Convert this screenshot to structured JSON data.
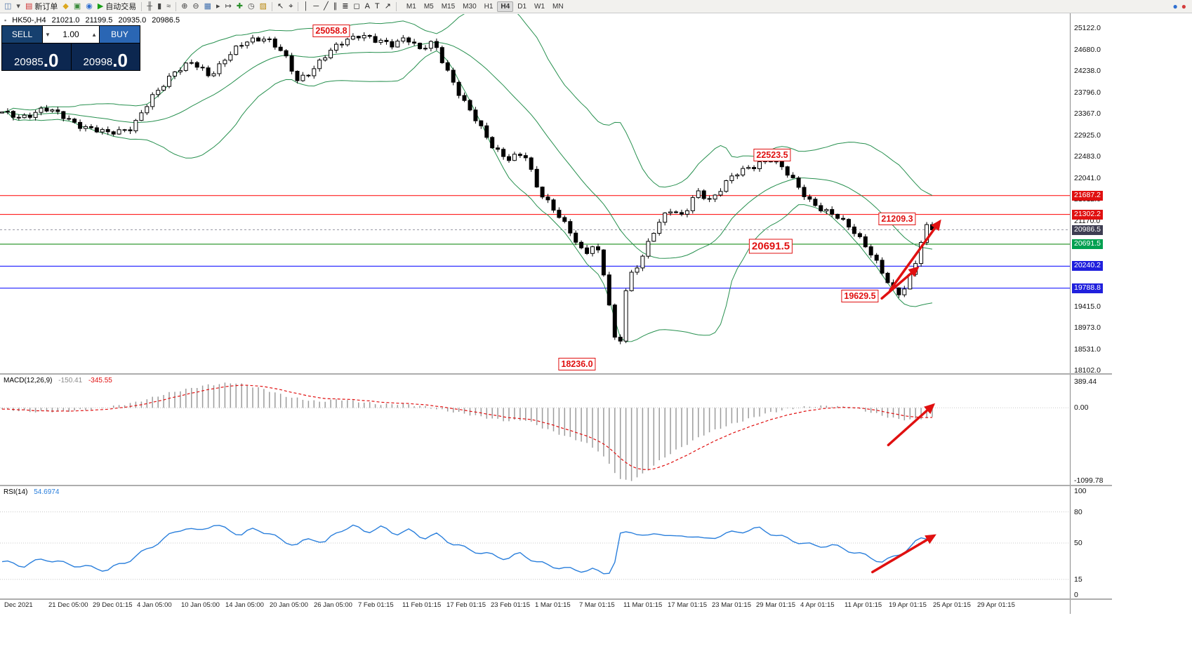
{
  "toolbar": {
    "items": [
      {
        "name": "chart-window-icon",
        "glyph": "◫",
        "color": "#4f74a8"
      },
      {
        "name": "dropdown-caret-icon",
        "glyph": "▾",
        "color": "#555555"
      },
      {
        "name": "new-order-button",
        "glyph": "▤",
        "label": "新订单",
        "color": "#cf3434"
      },
      {
        "name": "metaeditor-icon",
        "glyph": "◆",
        "color": "#dca81e"
      },
      {
        "name": "guide-icon",
        "glyph": "▣",
        "color": "#3c8c3c"
      },
      {
        "name": "market-icon",
        "glyph": "◉",
        "color": "#2f6fd0"
      },
      {
        "name": "autotrading-button",
        "glyph": "▶",
        "label": "自动交易",
        "color": "#18a018"
      },
      {
        "type": "sep"
      },
      {
        "name": "ohlc-bars-icon",
        "glyph": "╫",
        "color": "#444444"
      },
      {
        "name": "candlestick-chart-icon",
        "glyph": "▮",
        "color": "#444444"
      },
      {
        "name": "line-chart-icon",
        "glyph": "≈",
        "color": "#444444"
      },
      {
        "type": "sep"
      },
      {
        "name": "zoom-in-icon",
        "glyph": "⊕",
        "color": "#444444"
      },
      {
        "name": "zoom-out-icon",
        "glyph": "⊖",
        "color": "#444444"
      },
      {
        "name": "tile-windows-icon",
        "glyph": "▦",
        "color": "#3f6fae"
      },
      {
        "name": "auto-scroll-icon",
        "glyph": "▸",
        "color": "#444444"
      },
      {
        "name": "chart-shift-icon",
        "glyph": "↦",
        "color": "#444444"
      },
      {
        "name": "indicators-icon",
        "glyph": "✚",
        "color": "#2a8f2a"
      },
      {
        "name": "periods-icon",
        "glyph": "◷",
        "color": "#444444"
      },
      {
        "name": "templates-icon",
        "glyph": "▨",
        "color": "#b8860b"
      },
      {
        "type": "sep"
      },
      {
        "name": "cursor-icon",
        "glyph": "↖",
        "color": "#222222"
      },
      {
        "name": "crosshair-icon",
        "glyph": "⌖",
        "color": "#222222"
      },
      {
        "type": "sep"
      },
      {
        "name": "vertical-line-icon",
        "glyph": "│",
        "color": "#222222"
      },
      {
        "name": "horizontal-line-icon",
        "glyph": "─",
        "color": "#222222"
      },
      {
        "name": "trendline-icon",
        "glyph": "╱",
        "color": "#222222"
      },
      {
        "name": "channel-icon",
        "glyph": "∥",
        "color": "#222222"
      },
      {
        "name": "fibonacci-icon",
        "glyph": "≣",
        "color": "#222222"
      },
      {
        "name": "shapes-icon",
        "glyph": "◻",
        "color": "#222222"
      },
      {
        "name": "text-icon",
        "glyph": "A",
        "color": "#222222"
      },
      {
        "name": "label-icon",
        "glyph": "T",
        "color": "#222222"
      },
      {
        "name": "arrow-tool-icon",
        "glyph": "↗",
        "color": "#222222"
      },
      {
        "type": "sep"
      }
    ],
    "timeframes": {
      "options": [
        "M1",
        "M5",
        "M15",
        "M30",
        "H1",
        "H4",
        "D1",
        "W1",
        "MN"
      ],
      "active": "H4"
    },
    "right_icons": [
      {
        "name": "info-status-icon",
        "glyph": "●",
        "color": "#2f6fd0"
      },
      {
        "name": "alert-status-icon",
        "glyph": "●",
        "color": "#d43c3c"
      }
    ]
  },
  "chart_header": {
    "symbol_period": "HK50-,H4",
    "open": "21021.0",
    "high": "21199.5",
    "low": "20935.0",
    "close": "20986.5"
  },
  "trade_panel": {
    "sell_label": "SELL",
    "buy_label": "BUY",
    "volume": "1.00",
    "sell_price": "20985.0",
    "buy_price": "20998.0"
  },
  "indicators": {
    "macd": {
      "label": "MACD(12,26,9)",
      "value": "-150.41",
      "signal_value": "-345.55"
    },
    "rsi": {
      "label": "RSI(14)",
      "value": "54.6974"
    }
  },
  "axes": {
    "price_ticks": [
      "25122.0",
      "24680.0",
      "24238.0",
      "23796.0",
      "23367.0",
      "22925.0",
      "22483.0",
      "22041.0",
      "21612.0",
      "21170.0",
      "19415.0",
      "18973.0",
      "18531.0",
      "18102.0"
    ],
    "price_labels": [
      {
        "text": "21687.2",
        "price": 21687.2,
        "bg": "#e01010"
      },
      {
        "text": "21302.2",
        "price": 21302.2,
        "bg": "#e01010"
      },
      {
        "text": "20986.5",
        "price": 20986.5,
        "bg": "#3d3d52"
      },
      {
        "text": "20691.5",
        "price": 20691.5,
        "bg": "#00a050"
      },
      {
        "text": "20240.2",
        "price": 20240.2,
        "bg": "#2020dd"
      },
      {
        "text": "19788.8",
        "price": 19788.8,
        "bg": "#2020dd"
      }
    ],
    "macd_ticks": [
      "389.44",
      "0.00",
      "-1099.78"
    ],
    "rsi_ticks": [
      "100",
      "80",
      "50",
      "15",
      "0"
    ],
    "time_labels": [
      "Dec 2021",
      "21 Dec 05:00",
      "29 Dec 01:15",
      "4 Jan 05:00",
      "10 Jan 05:00",
      "14 Jan 05:00",
      "20 Jan 05:00",
      "26 Jan 05:00",
      "7 Feb 01:15",
      "11 Feb 01:15",
      "17 Feb 01:15",
      "23 Feb 01:15",
      "1 Mar 01:15",
      "7 Mar 01:15",
      "11 Mar 01:15",
      "17 Mar 01:15",
      "23 Mar 01:15",
      "29 Mar 01:15",
      "4 Apr 01:15",
      "11 Apr 01:15",
      "19 Apr 01:15",
      "25 Apr 01:15",
      "29 Apr 01:15"
    ]
  },
  "chart_data": {
    "type": "candlestick",
    "symbol": "HK50",
    "timeframe": "H4",
    "main": {
      "y_range": [
        18045,
        25410
      ],
      "bollinger_period": 20,
      "bollinger_deviation": 2,
      "current_price": 20986.5,
      "levels": [
        {
          "price": 21687.2,
          "color": "#ff0000"
        },
        {
          "price": 21302.2,
          "color": "#ff0000"
        },
        {
          "price": 20691.5,
          "color": "#008000"
        },
        {
          "price": 20240.2,
          "color": "#0000ff"
        },
        {
          "price": 19788.8,
          "color": "#0000ff"
        }
      ],
      "price_path": [
        [
          0,
          23400
        ],
        [
          0.019,
          23250
        ],
        [
          0.045,
          23500
        ],
        [
          0.075,
          23200
        ],
        [
          0.113,
          22950
        ],
        [
          0.14,
          23100
        ],
        [
          0.162,
          23700
        ],
        [
          0.185,
          24250
        ],
        [
          0.204,
          24400
        ],
        [
          0.223,
          24150
        ],
        [
          0.242,
          24550
        ],
        [
          0.264,
          24850
        ],
        [
          0.283,
          24950
        ],
        [
          0.302,
          24600
        ],
        [
          0.317,
          24050
        ],
        [
          0.332,
          24250
        ],
        [
          0.351,
          24600
        ],
        [
          0.37,
          24900
        ],
        [
          0.385,
          25000
        ],
        [
          0.4,
          24850
        ],
        [
          0.419,
          24800
        ],
        [
          0.434,
          24950
        ],
        [
          0.449,
          24650
        ],
        [
          0.464,
          24850
        ],
        [
          0.479,
          24250
        ],
        [
          0.494,
          23650
        ],
        [
          0.513,
          23150
        ],
        [
          0.528,
          22700
        ],
        [
          0.543,
          22400
        ],
        [
          0.562,
          22550
        ],
        [
          0.577,
          21800
        ],
        [
          0.596,
          21300
        ],
        [
          0.611,
          20950
        ],
        [
          0.626,
          20500
        ],
        [
          0.638,
          20700
        ],
        [
          0.649,
          19900
        ],
        [
          0.657,
          18900
        ],
        [
          0.663,
          18350
        ],
        [
          0.668,
          19600
        ],
        [
          0.675,
          20050
        ],
        [
          0.687,
          20350
        ],
        [
          0.702,
          21000
        ],
        [
          0.717,
          21450
        ],
        [
          0.732,
          21250
        ],
        [
          0.747,
          21750
        ],
        [
          0.762,
          21600
        ],
        [
          0.777,
          21950
        ],
        [
          0.792,
          22150
        ],
        [
          0.808,
          22300
        ],
        [
          0.823,
          22480
        ],
        [
          0.838,
          22250
        ],
        [
          0.853,
          21950
        ],
        [
          0.868,
          21600
        ],
        [
          0.883,
          21350
        ],
        [
          0.898,
          21250
        ],
        [
          0.913,
          21050
        ],
        [
          0.928,
          20650
        ],
        [
          0.943,
          20200
        ],
        [
          0.955,
          19850
        ],
        [
          0.962,
          19680
        ],
        [
          0.97,
          19800
        ],
        [
          0.977,
          20050
        ],
        [
          0.985,
          20450
        ],
        [
          0.992,
          21050
        ],
        [
          1,
          20986.5
        ]
      ],
      "callouts": [
        {
          "text": "25058.8",
          "x": 0.356,
          "at": 25058.8
        },
        {
          "text": "22523.5",
          "x": 0.83,
          "at": 22523.5
        },
        {
          "text": "21209.3",
          "x": 0.9645,
          "at": 21209.3
        },
        {
          "text": "20691.5",
          "x": 0.8287,
          "at": 20650,
          "large": true
        },
        {
          "text": "19629.5",
          "x": 0.9245,
          "at": 19629.5
        },
        {
          "text": "18236.0",
          "x": 0.62,
          "at": 18236
        }
      ],
      "arrows": [
        {
          "x1": 0.948,
          "p1": 19580,
          "x2": 0.986,
          "p2": 20200
        },
        {
          "x1": 0.957,
          "p1": 19750,
          "x2": 1.01,
          "p2": 21150
        }
      ]
    },
    "macd": {
      "type": "histogram+signal",
      "y_range": [
        -1160,
        500
      ],
      "path": [
        [
          0,
          -20
        ],
        [
          0.03,
          -60
        ],
        [
          0.068,
          -50
        ],
        [
          0.106,
          -10
        ],
        [
          0.143,
          80
        ],
        [
          0.181,
          230
        ],
        [
          0.219,
          340
        ],
        [
          0.249,
          380
        ],
        [
          0.279,
          290
        ],
        [
          0.309,
          160
        ],
        [
          0.34,
          90
        ],
        [
          0.362,
          130
        ],
        [
          0.385,
          90
        ],
        [
          0.408,
          50
        ],
        [
          0.43,
          60
        ],
        [
          0.453,
          20
        ],
        [
          0.475,
          -40
        ],
        [
          0.498,
          -90
        ],
        [
          0.521,
          -150
        ],
        [
          0.543,
          -200
        ],
        [
          0.562,
          -180
        ],
        [
          0.581,
          -300
        ],
        [
          0.604,
          -420
        ],
        [
          0.626,
          -520
        ],
        [
          0.641,
          -650
        ],
        [
          0.653,
          -850
        ],
        [
          0.664,
          -1080
        ],
        [
          0.675,
          -1100
        ],
        [
          0.687,
          -1020
        ],
        [
          0.702,
          -850
        ],
        [
          0.717,
          -700
        ],
        [
          0.736,
          -550
        ],
        [
          0.755,
          -400
        ],
        [
          0.777,
          -280
        ],
        [
          0.8,
          -180
        ],
        [
          0.823,
          -80
        ],
        [
          0.845,
          -20
        ],
        [
          0.868,
          20
        ],
        [
          0.891,
          30
        ],
        [
          0.913,
          0
        ],
        [
          0.932,
          -60
        ],
        [
          0.947,
          -120
        ],
        [
          0.962,
          -170
        ],
        [
          0.977,
          -180
        ],
        [
          0.989,
          -160
        ],
        [
          1,
          -150.41
        ]
      ],
      "arrow": {
        "x1": 0.955,
        "v1": -560,
        "x2": 1.003,
        "v2": 40
      }
    },
    "rsi": {
      "type": "line",
      "y_range": [
        -3.4,
        104.7
      ],
      "levels": [
        80,
        50,
        15
      ],
      "path": [
        [
          0,
          32
        ],
        [
          0.023,
          28
        ],
        [
          0.045,
          35
        ],
        [
          0.068,
          30
        ],
        [
          0.091,
          27
        ],
        [
          0.113,
          24
        ],
        [
          0.136,
          33
        ],
        [
          0.158,
          45
        ],
        [
          0.181,
          58
        ],
        [
          0.196,
          65
        ],
        [
          0.211,
          61
        ],
        [
          0.226,
          68
        ],
        [
          0.242,
          63
        ],
        [
          0.257,
          58
        ],
        [
          0.272,
          64
        ],
        [
          0.287,
          59
        ],
        [
          0.302,
          52
        ],
        [
          0.317,
          48
        ],
        [
          0.332,
          55
        ],
        [
          0.347,
          50
        ],
        [
          0.362,
          62
        ],
        [
          0.377,
          66
        ],
        [
          0.392,
          61
        ],
        [
          0.408,
          65
        ],
        [
          0.423,
          59
        ],
        [
          0.438,
          62
        ],
        [
          0.453,
          55
        ],
        [
          0.468,
          58
        ],
        [
          0.483,
          50
        ],
        [
          0.498,
          45
        ],
        [
          0.513,
          41
        ],
        [
          0.528,
          38
        ],
        [
          0.543,
          35
        ],
        [
          0.558,
          40
        ],
        [
          0.574,
          32
        ],
        [
          0.589,
          28
        ],
        [
          0.604,
          26
        ],
        [
          0.619,
          23
        ],
        [
          0.634,
          25
        ],
        [
          0.645,
          20
        ],
        [
          0.657,
          24
        ],
        [
          0.664,
          58
        ],
        [
          0.679,
          61
        ],
        [
          0.694,
          56
        ],
        [
          0.709,
          60
        ],
        [
          0.725,
          55
        ],
        [
          0.74,
          58
        ],
        [
          0.755,
          53
        ],
        [
          0.77,
          57
        ],
        [
          0.785,
          60
        ],
        [
          0.8,
          62
        ],
        [
          0.815,
          64
        ],
        [
          0.83,
          58
        ],
        [
          0.845,
          54
        ],
        [
          0.86,
          50
        ],
        [
          0.875,
          47
        ],
        [
          0.891,
          48
        ],
        [
          0.906,
          44
        ],
        [
          0.921,
          40
        ],
        [
          0.936,
          35
        ],
        [
          0.947,
          32
        ],
        [
          0.958,
          36
        ],
        [
          0.97,
          42
        ],
        [
          0.981,
          50
        ],
        [
          0.99,
          55
        ],
        [
          1,
          54.6974
        ]
      ],
      "arrow": {
        "x1": 0.938,
        "v1": 22,
        "x2": 1.004,
        "v2": 57
      }
    }
  }
}
